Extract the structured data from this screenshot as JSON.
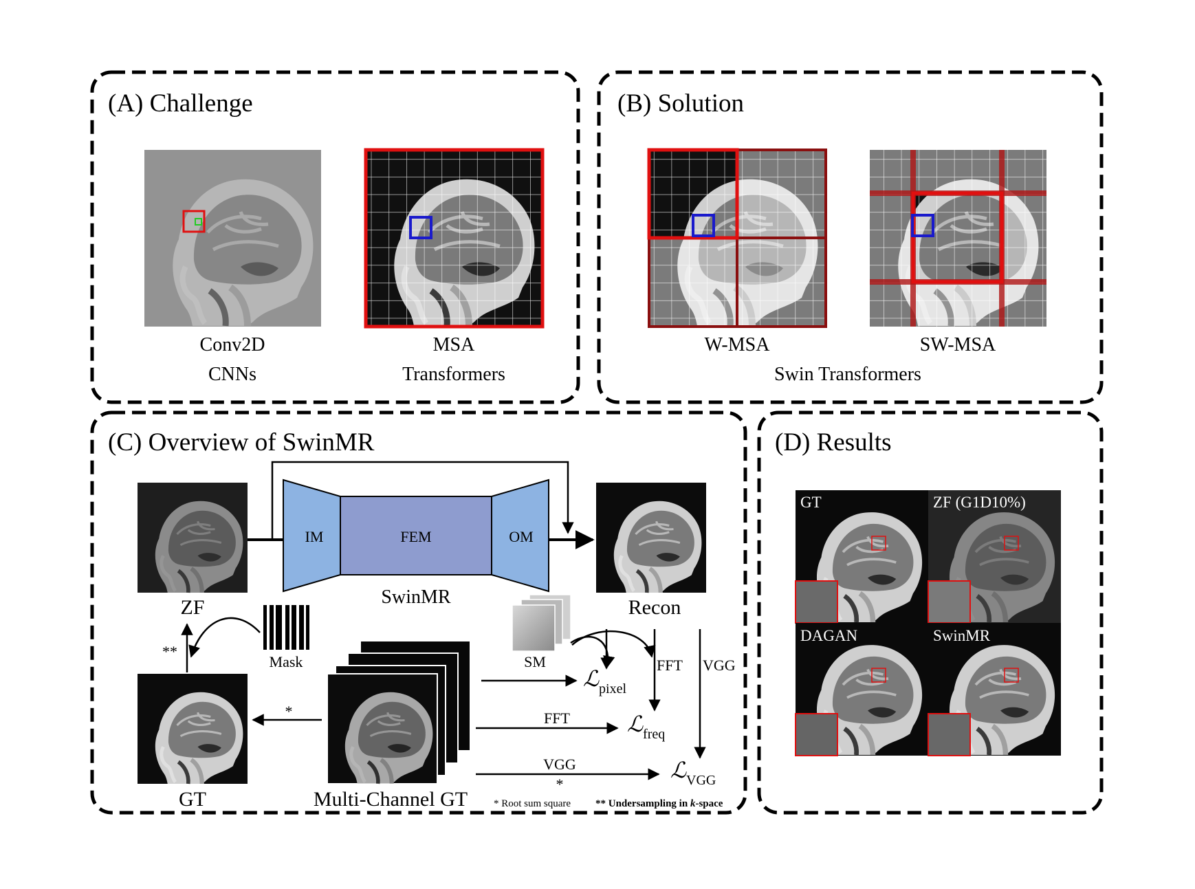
{
  "panels": {
    "a": {
      "title": "(A) Challenge",
      "conv_line1": "Conv2D",
      "conv_line2": "CNNs",
      "msa_line1": "MSA",
      "msa_line2": "Transformers"
    },
    "b": {
      "title": "(B) Solution",
      "wmsa": "W-MSA",
      "swmsa": "SW-MSA",
      "caption": "Swin Transformers"
    },
    "c": {
      "title": "(C) Overview of SwinMR",
      "zf": "ZF",
      "gt": "GT",
      "recon": "Recon",
      "mask": "Mask",
      "sm": "SM",
      "multi_gt": "Multi-Channel GT",
      "im": "IM",
      "fem": "FEM",
      "om": "OM",
      "swinmr": "SwinMR",
      "fft_vertical": "FFT",
      "vgg_vertical": "VGG",
      "fft_arrow": "FFT",
      "vgg_arrow": "VGG",
      "star_single": "*",
      "star_double": "**",
      "loss_symbol": "ℒ",
      "loss_pixel": "pixel",
      "loss_freq": "freq",
      "loss_vgg": "VGG",
      "note_rss": "* Root sum square",
      "note_under_prefix": "** Undersampling in ",
      "note_under_k": "k",
      "note_under_suffix": "-space"
    },
    "d": {
      "title": "(D) Results",
      "gt": "GT",
      "zf": "ZF (G1D10%)",
      "dagan": "DAGAN",
      "swinmr": "SwinMR"
    }
  },
  "colors": {
    "highlight_red": "#e01010",
    "highlight_blue": "#1a1acc",
    "highlight_green": "#22cc22",
    "encoder_blue": "#8db3e2",
    "fem_purple": "#8e9ccf"
  }
}
